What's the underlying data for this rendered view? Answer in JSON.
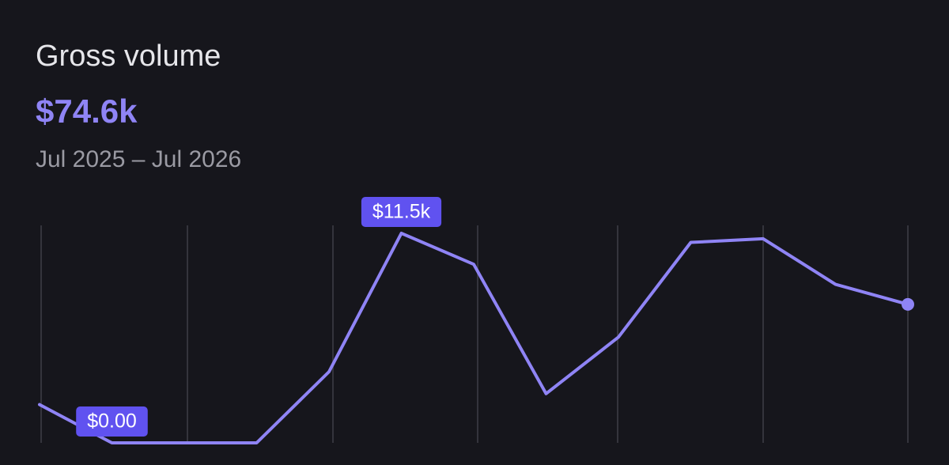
{
  "chart_data": {
    "type": "line",
    "title": "Gross volume",
    "total": "$74.6k",
    "subtitle": "Jul 2025 – Jul 2026",
    "categories": [
      null,
      null,
      null,
      null,
      null,
      null,
      null,
      null,
      null,
      null,
      null,
      null,
      null
    ],
    "values": [
      2100,
      0,
      0,
      0,
      3900,
      11500,
      9800,
      2700,
      5800,
      11000,
      11200,
      8700,
      7600
    ],
    "value_labels": [
      null,
      "$0.00",
      null,
      null,
      null,
      "$11.5k",
      null,
      null,
      null,
      null,
      null,
      null,
      null
    ],
    "color": "#8f84f5",
    "label_color": "#6052f0",
    "ylim": [
      0,
      11500
    ]
  }
}
